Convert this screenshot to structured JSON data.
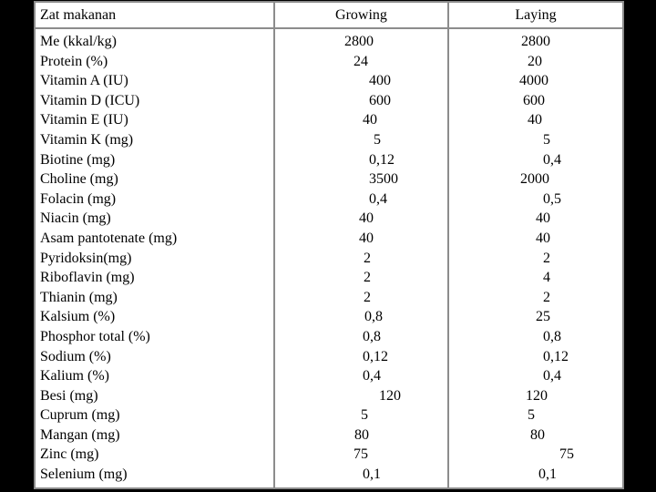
{
  "table": {
    "headers": [
      "Zat makanan",
      "Growing",
      "Laying"
    ],
    "rows": [
      {
        "nutrient": "Me (kkal/kg)",
        "growing": "2800",
        "laying": "2800"
      },
      {
        "nutrient": "Protein (%)",
        "growing": "24",
        "laying": "20"
      },
      {
        "nutrient": "Vitamin A (IU)",
        "growing": "400",
        "laying": "4000"
      },
      {
        "nutrient": "Vitamin D  (ICU)",
        "growing": "600",
        "laying": "600"
      },
      {
        "nutrient": "Vitamin E (IU)",
        "growing": "40",
        "laying": "40"
      },
      {
        "nutrient": "Vitamin K (mg)",
        "growing": "5",
        "laying": "5"
      },
      {
        "nutrient": "Biotine (mg)",
        "growing": "0,12",
        "laying": "0,4"
      },
      {
        "nutrient": "Choline (mg)",
        "growing": "3500",
        "laying": "2000"
      },
      {
        "nutrient": "Folacin (mg)",
        "growing": "0,4",
        "laying": "0,5"
      },
      {
        "nutrient": "Niacin (mg)",
        "growing": "40",
        "laying": "40"
      },
      {
        "nutrient": "Asam pantotenate (mg)",
        "growing": "40",
        "laying": "40"
      },
      {
        "nutrient": "Pyridoksin(mg)",
        "growing": "2",
        "laying": "2"
      },
      {
        "nutrient": "Riboflavin (mg)",
        "growing": "2",
        "laying": "4"
      },
      {
        "nutrient": "Thianin (mg)",
        "growing": "2",
        "laying": "2"
      },
      {
        "nutrient": "Kalsium (%)",
        "growing": "0,8",
        "laying": "25"
      },
      {
        "nutrient": "Phosphor total (%)",
        "growing": "0,8",
        "laying": "0,8"
      },
      {
        "nutrient": "Sodium (%)",
        "growing": "0,12",
        "laying": "0,12"
      },
      {
        "nutrient": "Kalium (%)",
        "growing": "0,4",
        "laying": "0,4"
      },
      {
        "nutrient": "Besi (mg)",
        "growing": "120",
        "laying": "120"
      },
      {
        "nutrient": "Cuprum (mg)",
        "growing": "5",
        "laying": "5"
      },
      {
        "nutrient": "Mangan (mg)",
        "growing": "80",
        "laying": "80"
      },
      {
        "nutrient": "Zinc (mg)",
        "growing": "75",
        "laying": "75"
      },
      {
        "nutrient": "Selenium (mg)",
        "growing": "0,1",
        "laying": "0,1"
      }
    ]
  },
  "colors": {
    "background": "#000000",
    "cell": "#ffffff",
    "border": "#8c8c8c",
    "text": "#000000"
  }
}
